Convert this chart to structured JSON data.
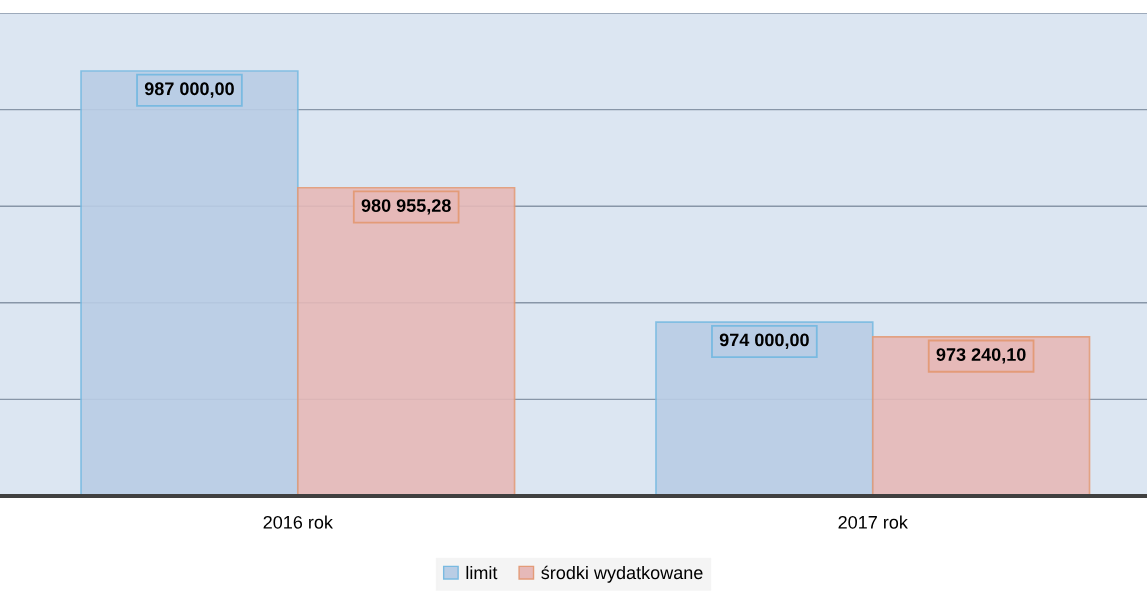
{
  "chart_data": {
    "type": "bar",
    "categories": [
      "2016 rok",
      "2017 rok"
    ],
    "series": [
      {
        "name": "limit",
        "color": "#b9cde5",
        "values": [
          987000.0,
          974000.0
        ],
        "value_labels": [
          "987 000,00",
          "974 000,00"
        ]
      },
      {
        "name": "środki wydatkowane",
        "color": "#e6b9b8",
        "values": [
          980955.28,
          973240.1
        ],
        "value_labels": [
          "980 955,28",
          "973 240,10"
        ]
      }
    ],
    "ylim": [
      965000,
      990000
    ],
    "yticks": [
      {
        "value": 965000,
        "label": null
      },
      {
        "value": 970000,
        "label": null
      },
      {
        "value": 975000,
        "label": null
      },
      {
        "value": 980000,
        "label": null
      },
      {
        "value": 985000,
        "label": null
      },
      {
        "value": 990000,
        "label": null
      }
    ],
    "tick_labels": "x",
    "grid": "y",
    "legend": "bottom"
  }
}
